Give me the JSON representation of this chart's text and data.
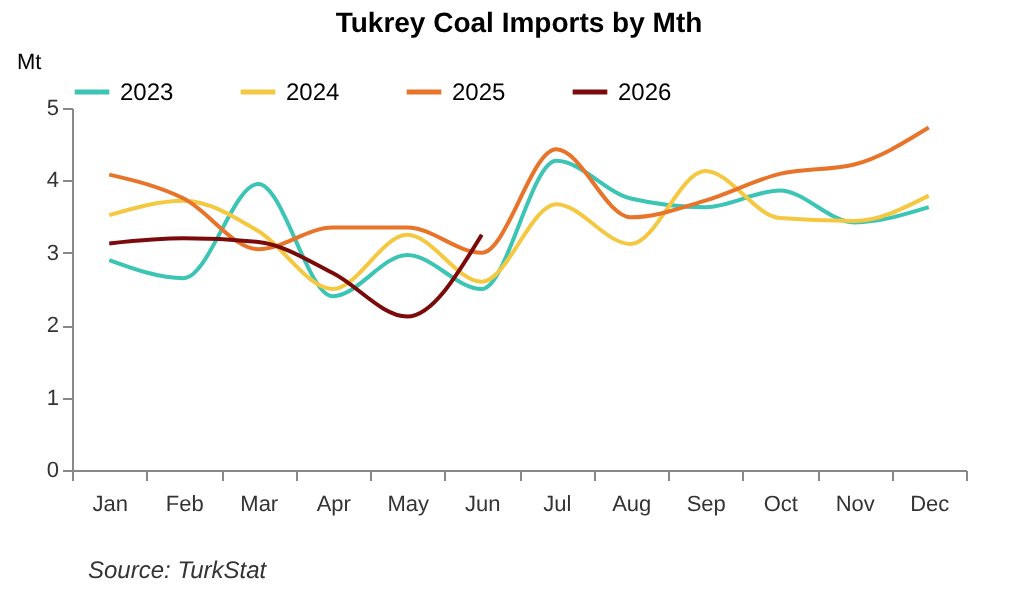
{
  "chart_data": {
    "type": "line",
    "title": "Tukrey Coal Imports by Mth",
    "ylabel": "Mt",
    "annotations": [
      "Source: TurkStat"
    ],
    "categories": [
      "Jan",
      "Feb",
      "Mar",
      "Apr",
      "May",
      "Jun",
      "Jul",
      "Aug",
      "Sep",
      "Oct",
      "Nov",
      "Dec"
    ],
    "series": [
      {
        "name": "2023",
        "color": "#3cc4b4",
        "values": [
          2.9,
          2.65,
          3.95,
          2.4,
          2.97,
          2.5,
          4.27,
          3.75,
          3.63,
          3.86,
          3.42,
          3.63
        ]
      },
      {
        "name": "2024",
        "color": "#f5c842",
        "values": [
          3.52,
          3.72,
          3.3,
          2.5,
          3.25,
          2.6,
          3.67,
          3.12,
          4.13,
          3.48,
          3.44,
          3.79
        ]
      },
      {
        "name": "2025",
        "color": "#e8742a",
        "values": [
          4.08,
          3.75,
          3.05,
          3.35,
          3.35,
          3.0,
          4.43,
          3.49,
          3.72,
          4.09,
          4.22,
          4.73
        ]
      },
      {
        "name": "2026",
        "color": "#7b0a0a",
        "values": [
          3.13,
          3.2,
          3.15,
          2.72,
          2.12,
          3.25,
          null,
          null,
          null,
          null,
          null,
          null
        ]
      }
    ],
    "ylim": [
      0,
      5
    ],
    "yticks": [
      0,
      1,
      2,
      3,
      4,
      5
    ],
    "grid": false,
    "legend": "top",
    "line_style": "solid"
  }
}
